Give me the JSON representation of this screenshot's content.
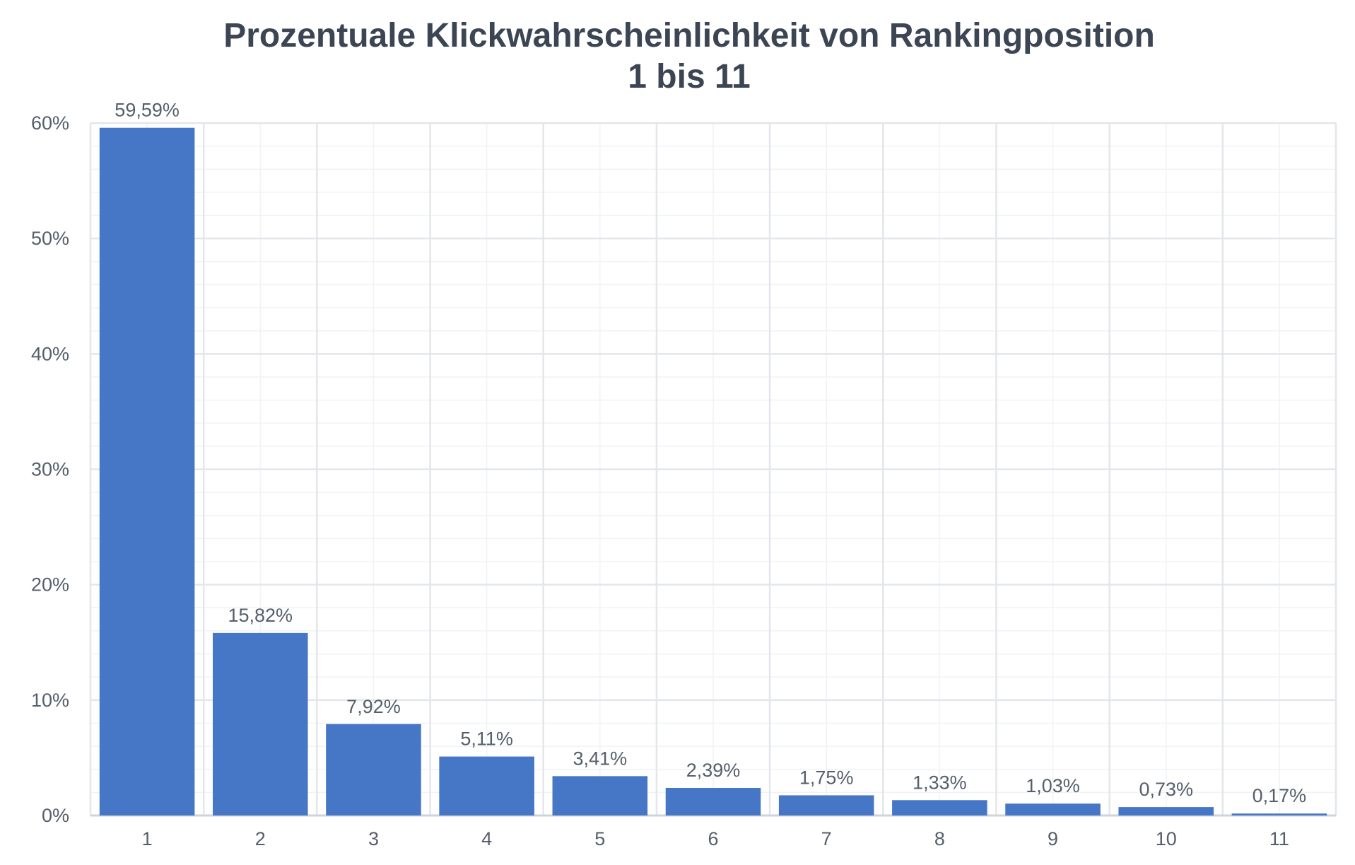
{
  "chart_data": {
    "type": "bar",
    "title": "Prozentuale Klickwahrscheinlichkeit  von Rankingposition",
    "subtitle": "1 bis 11",
    "xlabel": "",
    "ylabel": "",
    "categories": [
      "1",
      "2",
      "3",
      "4",
      "5",
      "6",
      "7",
      "8",
      "9",
      "10",
      "11"
    ],
    "values": [
      59.59,
      15.82,
      7.92,
      5.11,
      3.41,
      2.39,
      1.75,
      1.33,
      1.03,
      0.73,
      0.17
    ],
    "value_labels": [
      "59,59%",
      "15,82%",
      "7,92%",
      "5,11%",
      "3,41%",
      "2,39%",
      "1,75%",
      "1,33%",
      "1,03%",
      "0,73%",
      "0,17%"
    ],
    "y_ticks": [
      0,
      10,
      20,
      30,
      40,
      50,
      60
    ],
    "y_tick_labels": [
      "0%",
      "10%",
      "20%",
      "30%",
      "40%",
      "50%",
      "60%"
    ],
    "ylim": [
      0,
      60
    ],
    "grid": true,
    "legend": "none",
    "colors": {
      "bar": "#4677c6",
      "grid_major": "#e3e6ea",
      "grid_minor": "#f0f2f4",
      "text": "#555f6b",
      "title": "#3b4553"
    }
  }
}
